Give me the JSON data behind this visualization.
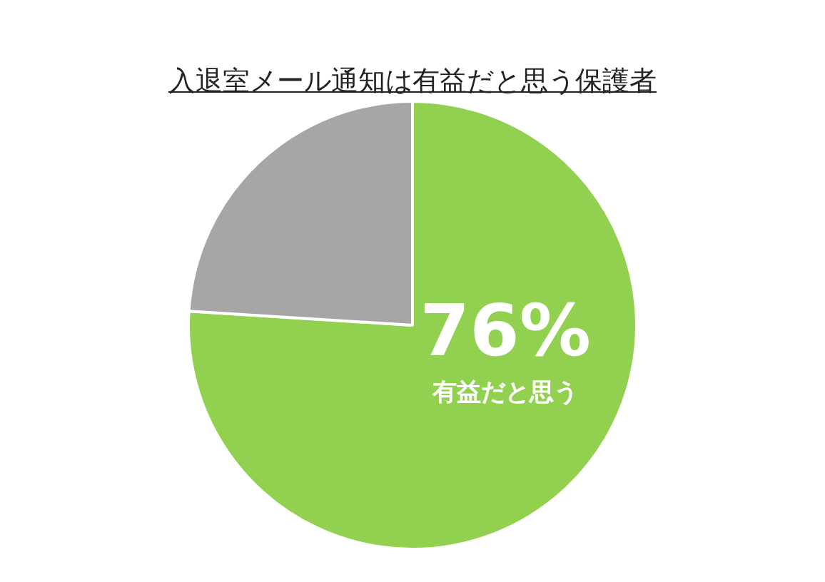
{
  "chart_data": {
    "type": "pie",
    "title": "入退室メール通知は有益だと思う保護者",
    "categories": [
      "有益だと思う",
      null
    ],
    "values": [
      76,
      24
    ],
    "colors": [
      "#92d050",
      "#a6a6a6"
    ],
    "value_labels": [
      "76%",
      null
    ],
    "legend": false
  }
}
